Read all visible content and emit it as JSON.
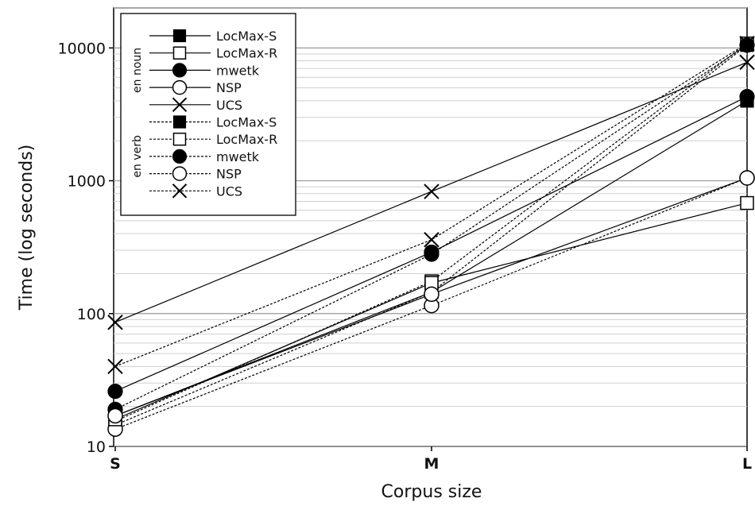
{
  "chart_data": {
    "type": "line",
    "xlabel": "Corpus size",
    "ylabel": "Time (log seconds)",
    "x_categories": [
      "S",
      "M",
      "L"
    ],
    "y_scale": "log",
    "ylim": [
      10,
      20000
    ],
    "y_ticks": [
      10,
      100,
      1000,
      10000
    ],
    "y_tick_labels": [
      "10",
      "100",
      "1000",
      "10000"
    ],
    "grid": "horizontal minor and major",
    "legend_position": "top-left",
    "legend_groups": [
      {
        "label": "en noun",
        "line_style": "solid"
      },
      {
        "label": "en verb",
        "line_style": "dotted"
      }
    ],
    "series": [
      {
        "name": "LocMax-S",
        "group": "en noun",
        "marker": "filled-square",
        "values": [
          17,
          145,
          4000
        ]
      },
      {
        "name": "LocMax-R",
        "group": "en noun",
        "marker": "open-square",
        "values": [
          16,
          170,
          680
        ]
      },
      {
        "name": "mwetk",
        "group": "en noun",
        "marker": "filled-circle",
        "values": [
          26,
          290,
          4300
        ]
      },
      {
        "name": "NSP",
        "group": "en noun",
        "marker": "open-circle",
        "values": [
          17,
          140,
          1050
        ]
      },
      {
        "name": "UCS",
        "group": "en noun",
        "marker": "x",
        "values": [
          86,
          830,
          7800
        ]
      },
      {
        "name": "LocMax-S",
        "group": "en verb",
        "marker": "filled-square",
        "values": [
          14.5,
          145,
          10500
        ]
      },
      {
        "name": "LocMax-R",
        "group": "en verb",
        "marker": "open-square",
        "values": [
          15.5,
          175,
          10800
        ]
      },
      {
        "name": "mwetk",
        "group": "en verb",
        "marker": "filled-circle",
        "values": [
          19,
          280,
          10500
        ]
      },
      {
        "name": "NSP",
        "group": "en verb",
        "marker": "open-circle",
        "values": [
          13.5,
          115,
          1050
        ]
      },
      {
        "name": "UCS",
        "group": "en verb",
        "marker": "x",
        "values": [
          40,
          360,
          10800
        ]
      }
    ]
  }
}
